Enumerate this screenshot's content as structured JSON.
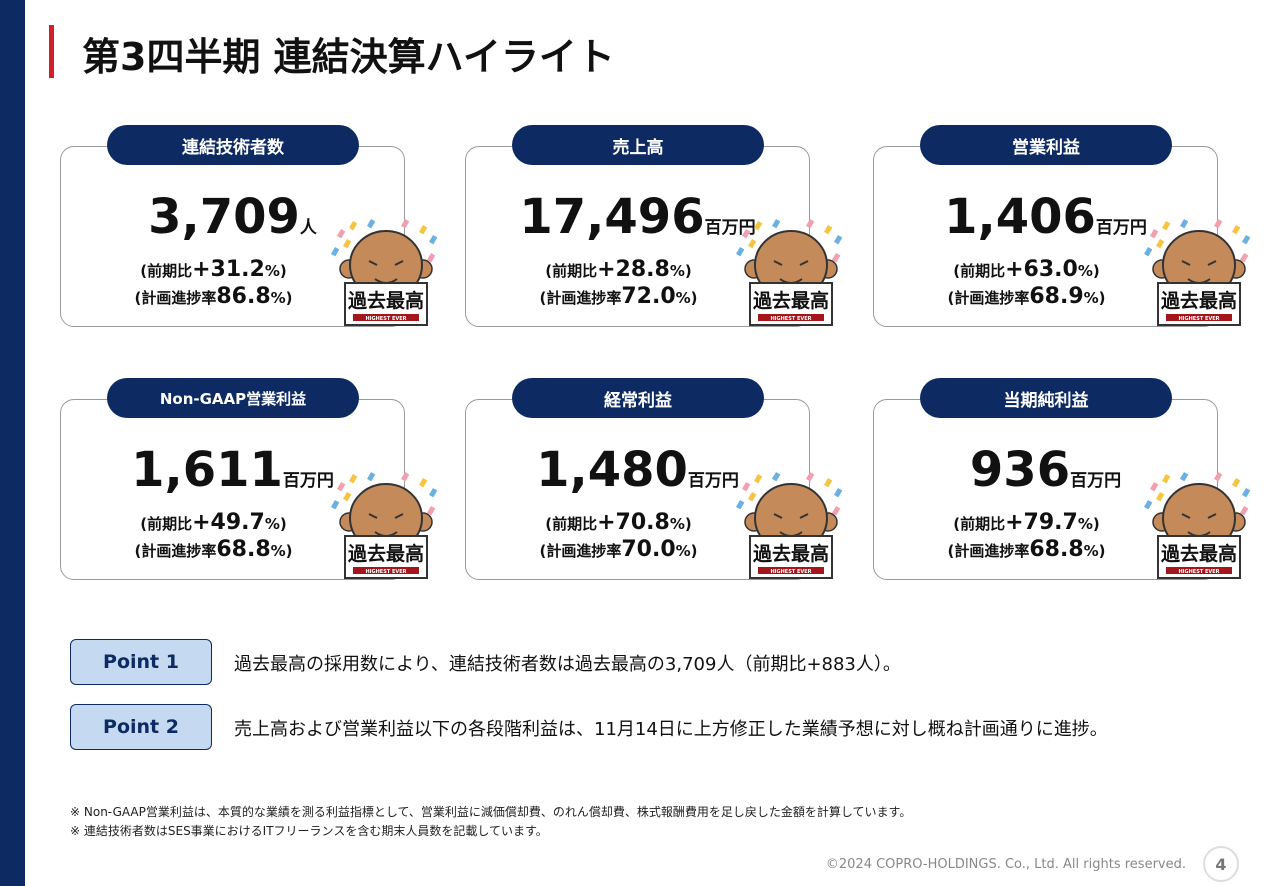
{
  "header": {
    "title": "第3四半期 連結決算ハイライト"
  },
  "badge": {
    "main": "過去最高",
    "sub": "HIGHEST EVER"
  },
  "cards": [
    {
      "label": "連結技術者数",
      "value": "3,709",
      "unit": "人",
      "yoy_label": "(前期比",
      "yoy_value": "+31.2",
      "yoy_unit": "%)",
      "plan_label": "(計画進捗率",
      "plan_value": "86.8",
      "plan_unit": "%)"
    },
    {
      "label": "売上高",
      "value": "17,496",
      "unit": "百万円",
      "yoy_label": "(前期比",
      "yoy_value": "+28.8",
      "yoy_unit": "%)",
      "plan_label": "(計画進捗率",
      "plan_value": "72.0",
      "plan_unit": "%)"
    },
    {
      "label": "営業利益",
      "value": "1,406",
      "unit": "百万円",
      "yoy_label": "(前期比",
      "yoy_value": "+63.0",
      "yoy_unit": "%)",
      "plan_label": "(計画進捗率",
      "plan_value": "68.9",
      "plan_unit": "%)"
    },
    {
      "label": "Non-GAAP営業利益",
      "value": "1,611",
      "unit": "百万円",
      "yoy_label": "(前期比",
      "yoy_value": "+49.7",
      "yoy_unit": "%)",
      "plan_label": "(計画進捗率",
      "plan_value": "68.8",
      "plan_unit": "%)"
    },
    {
      "label": "経常利益",
      "value": "1,480",
      "unit": "百万円",
      "yoy_label": "(前期比",
      "yoy_value": "+70.8",
      "yoy_unit": "%)",
      "plan_label": "(計画進捗率",
      "plan_value": "70.0",
      "plan_unit": "%)"
    },
    {
      "label": "当期純利益",
      "value": "936",
      "unit": "百万円",
      "yoy_label": "(前期比",
      "yoy_value": "+79.7",
      "yoy_unit": "%)",
      "plan_label": "(計画進捗率",
      "plan_value": "68.8",
      "plan_unit": "%)"
    }
  ],
  "points": [
    {
      "label": "Point 1",
      "text": "過去最高の採用数により、連結技術者数は過去最高の3,709人（前期比+883人）。"
    },
    {
      "label": "Point 2",
      "text": "売上高および営業利益以下の各段階利益は、11月14日に上方修正した業績予想に対し概ね計画通りに進捗。"
    }
  ],
  "notes": [
    "※ Non-GAAP営業利益は、本質的な業績を測る利益指標として、営業利益に減価償却費、のれん償却費、株式報酬費用を足し戻した金額を計算しています。",
    "※ 連結技術者数はSES事業におけるITフリーランスを含む期末人員数を記載しています。"
  ],
  "footer": {
    "copyright": "©2024 COPRO-HOLDINGS. Co., Ltd. All rights reserved.",
    "page": "4"
  }
}
